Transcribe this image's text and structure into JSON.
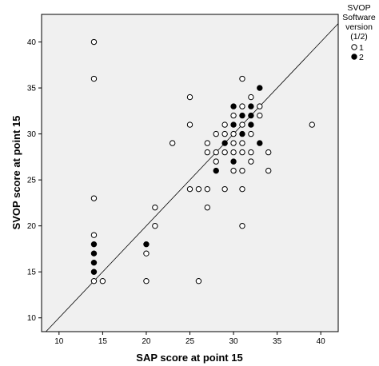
{
  "chart_data": {
    "type": "scatter",
    "title": "",
    "xlabel": "SAP score at point 15",
    "ylabel": "SVOP score at point 15",
    "xlim": [
      8,
      42
    ],
    "ylim": [
      8.5,
      43
    ],
    "xticks": [
      "10",
      "15",
      "20",
      "25",
      "30",
      "35",
      "40"
    ],
    "yticks": [
      "10",
      "15",
      "20",
      "25",
      "30",
      "35",
      "40"
    ],
    "grid": false,
    "reference_line": "y = x",
    "plot_background": "#f0f0f0",
    "legend": {
      "placement": "top-right",
      "title_lines": [
        "SVOP",
        "Software",
        "version",
        "(1/2)"
      ],
      "entries": [
        {
          "label": "1",
          "marker": "open-circle"
        },
        {
          "label": "2",
          "marker": "filled-circle"
        }
      ]
    },
    "series": [
      {
        "name": "1",
        "marker": "open-circle",
        "points": [
          [
            14,
            40
          ],
          [
            14,
            36
          ],
          [
            14,
            23
          ],
          [
            14,
            19
          ],
          [
            14,
            14
          ],
          [
            15,
            14
          ],
          [
            20,
            17
          ],
          [
            20,
            14
          ],
          [
            21,
            20
          ],
          [
            21,
            22
          ],
          [
            23,
            29
          ],
          [
            25,
            34
          ],
          [
            25,
            31
          ],
          [
            25,
            24
          ],
          [
            26,
            24
          ],
          [
            26,
            14
          ],
          [
            27,
            24
          ],
          [
            27,
            22
          ],
          [
            27,
            28
          ],
          [
            27,
            29
          ],
          [
            28,
            28
          ],
          [
            28,
            30
          ],
          [
            28,
            27
          ],
          [
            29,
            30
          ],
          [
            29,
            31
          ],
          [
            29,
            24
          ],
          [
            29,
            28
          ],
          [
            30,
            32
          ],
          [
            30,
            29
          ],
          [
            30,
            28
          ],
          [
            30,
            26
          ],
          [
            30,
            30
          ],
          [
            31,
            36
          ],
          [
            31,
            33
          ],
          [
            31,
            31
          ],
          [
            31,
            29
          ],
          [
            31,
            28
          ],
          [
            31,
            26
          ],
          [
            31,
            24
          ],
          [
            31,
            20
          ],
          [
            32,
            34
          ],
          [
            32,
            30
          ],
          [
            32,
            28
          ],
          [
            32,
            27
          ],
          [
            33,
            33
          ],
          [
            33,
            32
          ],
          [
            34,
            28
          ],
          [
            34,
            26
          ],
          [
            39,
            31
          ]
        ]
      },
      {
        "name": "2",
        "marker": "filled-circle",
        "points": [
          [
            14,
            18
          ],
          [
            14,
            17
          ],
          [
            14,
            16
          ],
          [
            14,
            15
          ],
          [
            20,
            18
          ],
          [
            28,
            26
          ],
          [
            29,
            29
          ],
          [
            30,
            33
          ],
          [
            30,
            31
          ],
          [
            30,
            27
          ],
          [
            31,
            32
          ],
          [
            31,
            30
          ],
          [
            32,
            33
          ],
          [
            32,
            32
          ],
          [
            32,
            31
          ],
          [
            33,
            35
          ],
          [
            33,
            29
          ]
        ]
      }
    ]
  }
}
